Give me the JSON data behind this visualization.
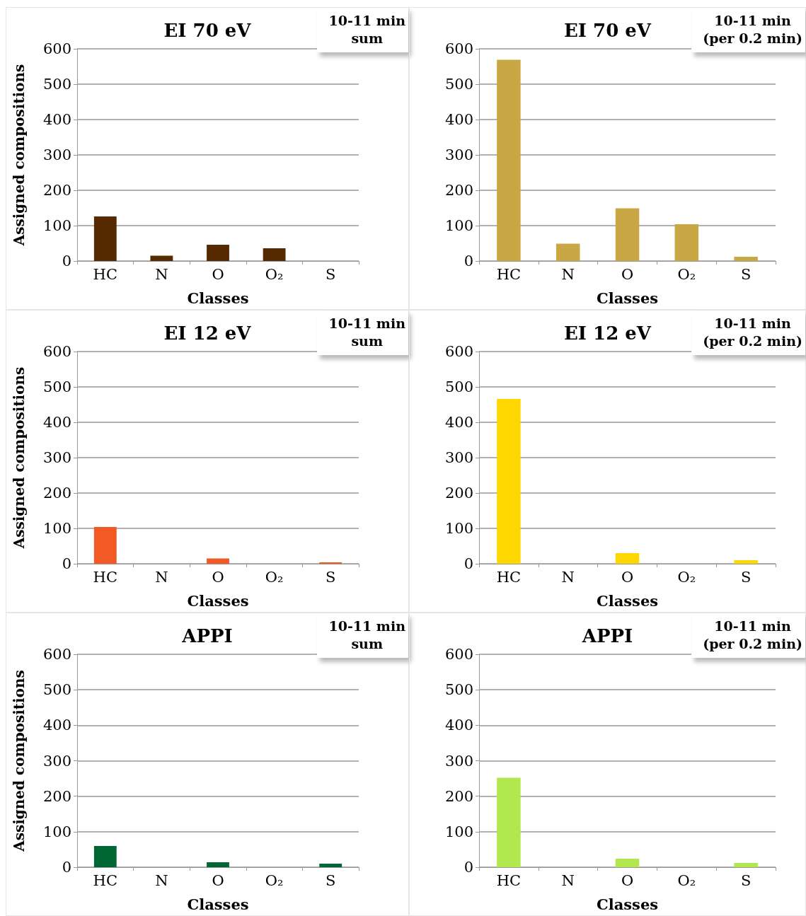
{
  "chart_data": [
    {
      "type": "bar",
      "title": "EI 70 eV",
      "ylabel": "Assigned compositions",
      "xlabel": "Classes",
      "categories": [
        "HC",
        "N",
        "O",
        "O₂",
        "S"
      ],
      "values": [
        126,
        15,
        46,
        36,
        0
      ],
      "color": "#552a00",
      "ylim": [
        0,
        600
      ],
      "yticks": [
        0,
        100,
        200,
        300,
        400,
        500,
        600
      ],
      "grid": "y",
      "annotations": [
        "10-11 min\nsum"
      ]
    },
    {
      "type": "bar",
      "title": "EI 70 eV",
      "xlabel": "Classes",
      "categories": [
        "HC",
        "N",
        "O",
        "O₂",
        "S"
      ],
      "values": [
        569,
        49,
        149,
        104,
        12
      ],
      "color": "#c9a745",
      "ylim": [
        0,
        600
      ],
      "yticks": [
        0,
        100,
        200,
        300,
        400,
        500,
        600
      ],
      "grid": "y",
      "annotations": [
        "10-11 min\n(per 0.2 min)"
      ]
    },
    {
      "type": "bar",
      "title": "EI 12 eV",
      "ylabel": "Assigned compositions",
      "xlabel": "Classes",
      "categories": [
        "HC",
        "N",
        "O",
        "O₂",
        "S"
      ],
      "values": [
        104,
        0,
        15,
        0,
        4
      ],
      "color": "#f15a24",
      "ylim": [
        0,
        600
      ],
      "yticks": [
        0,
        100,
        200,
        300,
        400,
        500,
        600
      ],
      "grid": "y",
      "annotations": [
        "10-11 min\nsum"
      ]
    },
    {
      "type": "bar",
      "title": "EI 12 eV",
      "xlabel": "Classes",
      "categories": [
        "HC",
        "N",
        "O",
        "O₂",
        "S"
      ],
      "values": [
        466,
        0,
        30,
        0,
        10
      ],
      "color": "#ffd700",
      "ylim": [
        0,
        600
      ],
      "yticks": [
        0,
        100,
        200,
        300,
        400,
        500,
        600
      ],
      "grid": "y",
      "annotations": [
        "10-11 min\n(per 0.2 min)"
      ]
    },
    {
      "type": "bar",
      "title": "APPI",
      "ylabel": "Assigned compositions",
      "xlabel": "Classes",
      "categories": [
        "HC",
        "N",
        "O",
        "O₂",
        "S"
      ],
      "values": [
        60,
        0,
        14,
        0,
        10
      ],
      "color": "#006633",
      "ylim": [
        0,
        600
      ],
      "yticks": [
        0,
        100,
        200,
        300,
        400,
        500,
        600
      ],
      "grid": "y",
      "annotations": [
        "10-11 min\nsum"
      ]
    },
    {
      "type": "bar",
      "title": "APPI",
      "xlabel": "Classes",
      "categories": [
        "HC",
        "N",
        "O",
        "O₂",
        "S"
      ],
      "values": [
        252,
        0,
        24,
        0,
        12
      ],
      "color": "#b0e84e",
      "ylim": [
        0,
        600
      ],
      "yticks": [
        0,
        100,
        200,
        300,
        400,
        500,
        600
      ],
      "grid": "y",
      "annotations": [
        "10-11 min\n(per 0.2 min)"
      ]
    }
  ]
}
